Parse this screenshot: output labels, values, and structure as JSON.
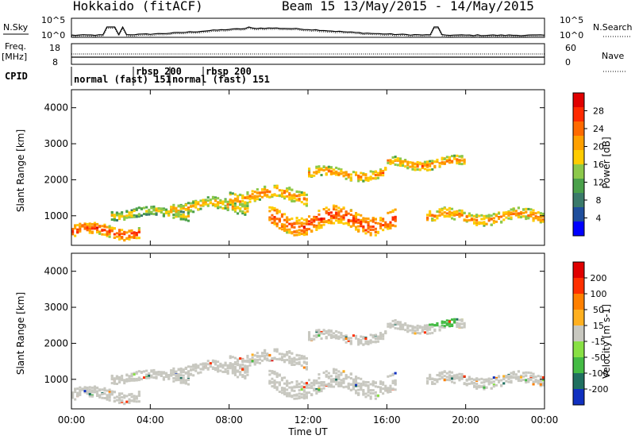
{
  "header": {
    "station": "Hokkaido (fitACF)",
    "beam_info": "Beam 15 13/May/2015 - 14/May/2015"
  },
  "noise_panel": {
    "left_label": "N.Sky",
    "right_label": "N.Search",
    "left_ticks": [
      "10^5",
      "10^0"
    ],
    "right_ticks": [
      "10^5",
      "10^0"
    ]
  },
  "freq_panel": {
    "left_label_1": "Freq.",
    "left_label_2": "[MHz]",
    "right_label": "Nave",
    "left_ticks": [
      "18",
      "8"
    ],
    "right_ticks": [
      "60",
      "0"
    ]
  },
  "cpid_panel": {
    "label": "CPID",
    "segments": [
      {
        "text": "normal (fast) 151",
        "start_hour": 0
      },
      {
        "text": "rbsp 200",
        "start_hour": 3.2
      },
      {
        "text": "normal (fast) 151",
        "start_hour": 5.0
      },
      {
        "text": "rbsp 200",
        "start_hour": 6.3
      }
    ]
  },
  "power_panel": {
    "ylabel": "Slant Range [km]",
    "yticks": [
      "4000",
      "3000",
      "2000",
      "1000"
    ],
    "colorbar_label": "Power [dB]",
    "colorbar_ticks": [
      "28",
      "24",
      "20",
      "16",
      "12",
      "8",
      "4"
    ],
    "colorbar_colors": [
      "#0000ff",
      "#1f4e9c",
      "#3a7a6a",
      "#4aa04a",
      "#8cc84a",
      "#ffcc00",
      "#ffa000",
      "#ff6a00",
      "#ff2a00",
      "#e00000"
    ]
  },
  "velocity_panel": {
    "ylabel": "Slant Range [km]",
    "yticks": [
      "4000",
      "3000",
      "2000",
      "1000"
    ],
    "colorbar_label": "Velocity [m s-1]",
    "colorbar_ticks": [
      "200",
      "100",
      "50",
      "15",
      "-15",
      "-50",
      "-100",
      "-200"
    ],
    "colorbar_colors": [
      "#1030c0",
      "#207060",
      "#44bb44",
      "#88e044",
      "#c8c8c0",
      "#ffb020",
      "#ff8000",
      "#ff3000",
      "#e00000"
    ]
  },
  "xaxis": {
    "label": "Time UT",
    "ticks": [
      "00:00",
      "04:00",
      "08:00",
      "12:00",
      "16:00",
      "20:00",
      "00:00"
    ]
  },
  "chart_data": {
    "type": "heatmap",
    "title": "Hokkaido (fitACF)",
    "subtitle": "Beam 15 13/May/2015 - 14/May/2015",
    "xlabel": "Time UT",
    "ylabel": "Slant Range [km]",
    "xlim_hours": [
      0,
      24
    ],
    "ylim_km": [
      180,
      4500
    ],
    "power_dB_range": [
      0,
      32
    ],
    "velocity_range": [
      -250,
      250
    ],
    "grid": false,
    "power_bands": [
      {
        "t0": 0,
        "t1": 3.5,
        "r_center": 600,
        "width": 300,
        "dB": 30
      },
      {
        "t0": 2,
        "t1": 6,
        "r_center": 1100,
        "width": 250,
        "dB": 22
      },
      {
        "t0": 5,
        "t1": 9,
        "r_center": 1300,
        "width": 300,
        "dB": 24
      },
      {
        "t0": 8,
        "t1": 12,
        "r_center": 1600,
        "width": 350,
        "dB": 26
      },
      {
        "t0": 10,
        "t1": 16.5,
        "r_center": 900,
        "width": 500,
        "dB": 30
      },
      {
        "t0": 12,
        "t1": 16,
        "r_center": 2200,
        "width": 250,
        "dB": 26
      },
      {
        "t0": 16,
        "t1": 20,
        "r_center": 2500,
        "width": 250,
        "dB": 26
      },
      {
        "t0": 18,
        "t1": 24,
        "r_center": 1000,
        "width": 300,
        "dB": 26
      }
    ]
  }
}
